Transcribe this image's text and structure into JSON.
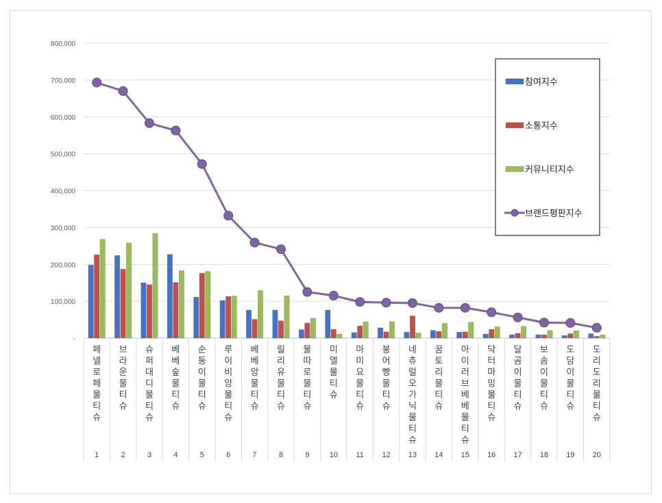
{
  "chart_data": {
    "type": "bar",
    "title": "",
    "xlabel": "",
    "ylabel": "",
    "ylim": [
      0,
      800000
    ],
    "yticks": [
      0,
      100000,
      200000,
      300000,
      400000,
      500000,
      600000,
      700000,
      800000
    ],
    "ytick_labels": [
      "-",
      "100,000",
      "200,000",
      "300,000",
      "400,000",
      "500,000",
      "600,000",
      "700,000",
      "800,000"
    ],
    "grid": true,
    "legend_position": "right",
    "rank_numbers": [
      "1",
      "2",
      "3",
      "4",
      "5",
      "6",
      "7",
      "8",
      "9",
      "10",
      "11",
      "12",
      "13",
      "14",
      "15",
      "16",
      "17",
      "18",
      "19",
      "20"
    ],
    "categories": [
      "페넬로페물티슈",
      "브라운물티슈",
      "슈퍼대디물티슈",
      "베베숲물티슈",
      "순둥이물티슈",
      "루이비앙물티슈",
      "베베앙물티슈",
      "릴리유물티슈",
      "물따로물티슈",
      "미엘물티슈",
      "마미요물티슈",
      "붕어빵물티슈",
      "네츄럴오가닉물티슈",
      "꿈토리물티슈",
      "아이러브베베물티슈",
      "닥터마밍물티슈",
      "달곰이물티슈",
      "보솜이물티슈",
      "도담이물티슈",
      "도리도리물티슈"
    ],
    "series": [
      {
        "name": "참여지수",
        "type": "bar",
        "color": "#4472c4",
        "values": [
          198000,
          224000,
          150000,
          227000,
          111000,
          102000,
          76000,
          76000,
          23000,
          76000,
          15000,
          28000,
          16000,
          21000,
          16000,
          11000,
          9000,
          9000,
          7000,
          12000
        ]
      },
      {
        "name": "소통지수",
        "type": "bar",
        "color": "#c0504d",
        "values": [
          226000,
          187000,
          145000,
          151000,
          176000,
          113000,
          51000,
          47000,
          41000,
          24000,
          33000,
          17000,
          60000,
          18000,
          17000,
          24000,
          13000,
          9000,
          12000,
          5000
        ]
      },
      {
        "name": "커뮤니티지수",
        "type": "bar",
        "color": "#9bbb59",
        "values": [
          268000,
          258000,
          284000,
          183000,
          181000,
          114000,
          129000,
          115000,
          54000,
          11000,
          44000,
          45000,
          14000,
          40000,
          43000,
          31000,
          32000,
          21000,
          20000,
          9000
        ]
      },
      {
        "name": "브랜드평판지수",
        "type": "line",
        "color": "#8064a2",
        "values": [
          693000,
          670000,
          583000,
          563000,
          472000,
          332000,
          259000,
          241000,
          125000,
          115000,
          98000,
          96000,
          95000,
          82000,
          82000,
          70000,
          56000,
          42000,
          41000,
          28000
        ]
      }
    ]
  }
}
